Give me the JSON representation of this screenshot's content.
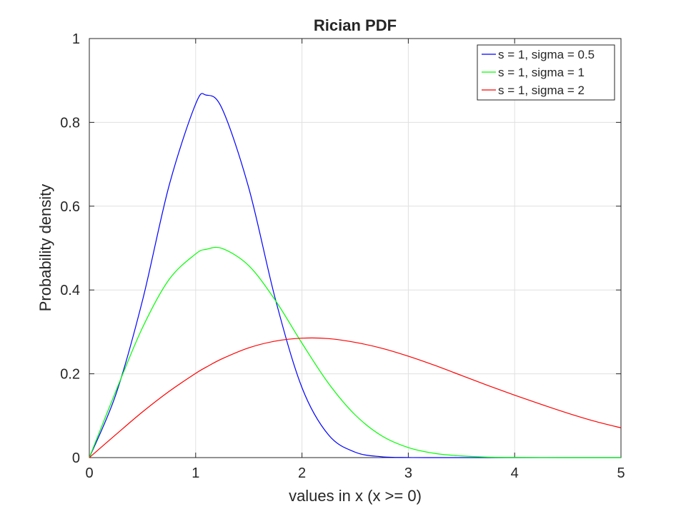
{
  "chart_data": {
    "type": "line",
    "title": "Rician PDF",
    "xlabel": "values in x (x >= 0)",
    "ylabel": "Probability density",
    "xlim": [
      0,
      5
    ],
    "ylim": [
      0,
      1
    ],
    "xticks": [
      "0",
      "1",
      "2",
      "3",
      "4",
      "5"
    ],
    "yticks": [
      "0",
      "0.2",
      "0.4",
      "0.6",
      "0.8",
      "1"
    ],
    "grid": true,
    "legend_position": "top-right",
    "x": [
      0,
      0.25,
      0.5,
      0.75,
      1.0,
      1.1,
      1.25,
      1.5,
      1.75,
      2.0,
      2.25,
      2.5,
      2.75,
      3.0,
      3.25,
      3.5,
      3.75,
      4.0,
      4.25,
      4.5,
      4.75,
      5.0
    ],
    "series": [
      {
        "name": "s = 1, sigma = 0.5",
        "color": "#0000ff",
        "values": [
          0,
          0.151,
          0.375,
          0.649,
          0.844,
          0.865,
          0.832,
          0.643,
          0.378,
          0.167,
          0.054,
          0.013,
          0.002,
          0.0003,
          3e-05,
          0,
          0,
          0,
          0,
          0,
          0,
          0
        ]
      },
      {
        "name": "s = 1, sigma = 1",
        "color": "#00ff00",
        "values": [
          0,
          0.159,
          0.31,
          0.425,
          0.486,
          0.497,
          0.499,
          0.458,
          0.375,
          0.273,
          0.177,
          0.102,
          0.052,
          0.024,
          0.01,
          0.004,
          0.001,
          0.0004,
          0.0001,
          0,
          0,
          0
        ]
      },
      {
        "name": "s = 1, sigma = 2",
        "color": "#ff0000",
        "values": [
          0,
          0.055,
          0.109,
          0.158,
          0.201,
          0.216,
          0.236,
          0.262,
          0.278,
          0.285,
          0.284,
          0.275,
          0.261,
          0.242,
          0.22,
          0.196,
          0.172,
          0.149,
          0.127,
          0.106,
          0.087,
          0.071
        ]
      }
    ]
  }
}
